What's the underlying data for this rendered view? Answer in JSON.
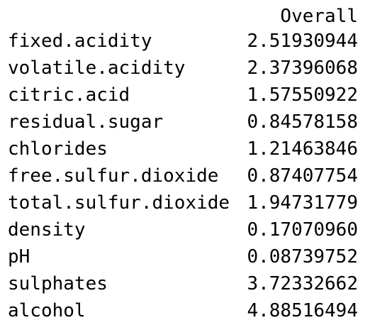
{
  "header": {
    "column": "Overall"
  },
  "rows": [
    {
      "name": "fixed.acidity",
      "value": "2.51930944"
    },
    {
      "name": "volatile.acidity",
      "value": "2.37396068"
    },
    {
      "name": "citric.acid",
      "value": "1.57550922"
    },
    {
      "name": "residual.sugar",
      "value": "0.84578158"
    },
    {
      "name": "chlorides",
      "value": "1.21463846"
    },
    {
      "name": "free.sulfur.dioxide",
      "value": "0.87407754"
    },
    {
      "name": "total.sulfur.dioxide",
      "value": "1.94731779"
    },
    {
      "name": "density",
      "value": "0.17070960"
    },
    {
      "name": "pH",
      "value": "0.08739752"
    },
    {
      "name": "sulphates",
      "value": "3.72332662"
    },
    {
      "name": "alcohol",
      "value": "4.88516494"
    }
  ]
}
